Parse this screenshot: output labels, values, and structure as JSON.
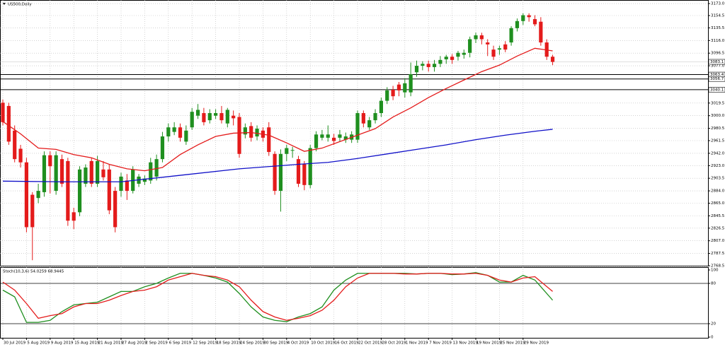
{
  "chart_data": {
    "type": "candlestick",
    "title": "US500,Daily",
    "up_color": "#1f8f1f",
    "down_color": "#e41b1b",
    "grid": true,
    "ylim": [
      2768.5,
      3178.5
    ],
    "yticks": [
      {
        "value": 3173.0,
        "label": "3173.0"
      },
      {
        "value": 3154.5,
        "label": "3154.5"
      },
      {
        "value": 3135.5,
        "label": "3135.5"
      },
      {
        "value": 3116.0,
        "label": "3116.0"
      },
      {
        "value": 3096.5,
        "label": "3096.5"
      },
      {
        "value": 3077.0,
        "label": "3077.0"
      },
      {
        "value": 3019.5,
        "label": "3019.5"
      },
      {
        "value": 3000.0,
        "label": "3000.0"
      },
      {
        "value": 2980.5,
        "label": "2980.5"
      },
      {
        "value": 2961.5,
        "label": "2961.5"
      },
      {
        "value": 2942.0,
        "label": "2942.0"
      },
      {
        "value": 2923.0,
        "label": "2923.0"
      },
      {
        "value": 2903.5,
        "label": "2903.5"
      },
      {
        "value": 2884.0,
        "label": "2884.0"
      },
      {
        "value": 2865.0,
        "label": "2865.0"
      },
      {
        "value": 2845.5,
        "label": "2845.5"
      },
      {
        "value": 2826.5,
        "label": "2826.5"
      },
      {
        "value": 2807.0,
        "label": "2807.0"
      },
      {
        "value": 2787.5,
        "label": "2787.5"
      },
      {
        "value": 2768.5,
        "label": "2768.5"
      }
    ],
    "levels": [
      {
        "value": 3063.4,
        "label": "3063.4"
      },
      {
        "value": 3056.7,
        "label": "3056.7"
      },
      {
        "value": 3040.1,
        "label": "3040.1"
      }
    ],
    "price_label": {
      "value": 3083.1,
      "label": "3083.1"
    },
    "categories": [
      "30 Jul 2019",
      null,
      null,
      null,
      "5 Aug 2019",
      null,
      null,
      null,
      "9 Aug 2019",
      null,
      null,
      null,
      "15 Aug 2019",
      null,
      null,
      null,
      "21 Aug 2019",
      null,
      null,
      null,
      "27 Aug 2019",
      null,
      null,
      null,
      "2 Sep 2019",
      null,
      null,
      null,
      "6 Sep 2019",
      null,
      null,
      null,
      "12 Sep 2019",
      null,
      null,
      null,
      "18 Sep 2019",
      null,
      null,
      null,
      "24 Sep 2019",
      null,
      null,
      null,
      "30 Sep 2019",
      null,
      null,
      null,
      "4 Oct 2019",
      null,
      null,
      null,
      "10 Oct 2019",
      null,
      null,
      null,
      "16 Oct 2019",
      null,
      null,
      null,
      "22 Oct 2019",
      null,
      null,
      null,
      "28 Oct 2019",
      null,
      null,
      null,
      "1 Nov 2019",
      null,
      null,
      null,
      "7 Nov 2019",
      null,
      null,
      null,
      "13 Nov 2019",
      null,
      null,
      null,
      "19 Nov 2019",
      null,
      null,
      null,
      "25 Nov 2019",
      null,
      null,
      null,
      "29 Nov 2019",
      null,
      null,
      null,
      null,
      null
    ],
    "candles": [
      [
        3020,
        3025,
        2985,
        2990
      ],
      [
        3015,
        3020,
        2955,
        2960
      ],
      [
        2977,
        2985,
        2928,
        2933
      ],
      [
        2949,
        2955,
        2920,
        2928
      ],
      [
        2928,
        2935,
        2820,
        2828
      ],
      [
        2878,
        2882,
        2777,
        2828
      ],
      [
        2873,
        2895,
        2865,
        2884
      ],
      [
        2882,
        2945,
        2875,
        2939
      ],
      [
        2939,
        2945,
        2880,
        2922
      ],
      [
        2884,
        2945,
        2878,
        2939
      ],
      [
        2933,
        2940,
        2890,
        2895
      ],
      [
        2930,
        2935,
        2830,
        2838
      ],
      [
        2851,
        2858,
        2825,
        2838
      ],
      [
        2851,
        2922,
        2845,
        2917
      ],
      [
        2895,
        2925,
        2890,
        2920
      ],
      [
        2930,
        2935,
        2890,
        2895
      ],
      [
        2895,
        2938,
        2890,
        2930
      ],
      [
        2917,
        2930,
        2900,
        2905
      ],
      [
        2917,
        2925,
        2848,
        2854
      ],
      [
        2884,
        2890,
        2820,
        2828
      ],
      [
        2884,
        2912,
        2875,
        2906
      ],
      [
        2900,
        2910,
        2870,
        2884
      ],
      [
        2884,
        2922,
        2880,
        2917
      ],
      [
        2895,
        2910,
        2890,
        2906
      ],
      [
        2898,
        2908,
        2893,
        2903
      ],
      [
        2900,
        2935,
        2895,
        2928
      ],
      [
        2906,
        2940,
        2900,
        2933
      ],
      [
        2933,
        2975,
        2928,
        2968
      ],
      [
        2968,
        2988,
        2960,
        2982
      ],
      [
        2975,
        2990,
        2970,
        2982
      ],
      [
        2982,
        2988,
        2960,
        2966
      ],
      [
        2960,
        2985,
        2955,
        2977
      ],
      [
        2982,
        3012,
        2978,
        3006
      ],
      [
        3000,
        3018,
        2995,
        3009
      ],
      [
        3004,
        3012,
        2985,
        2990
      ],
      [
        2993,
        3010,
        2988,
        3004
      ],
      [
        3000,
        3010,
        2995,
        3004
      ],
      [
        3004,
        3015,
        2988,
        2993
      ],
      [
        2988,
        3012,
        2982,
        3009
      ],
      [
        3000,
        3008,
        2985,
        2996
      ],
      [
        2998,
        3004,
        2935,
        2941
      ],
      [
        2971,
        2988,
        2965,
        2982
      ],
      [
        2984,
        2990,
        2960,
        2966
      ],
      [
        2968,
        2985,
        2962,
        2980
      ],
      [
        2977,
        2982,
        2960,
        2966
      ],
      [
        2982,
        2990,
        2938,
        2944
      ],
      [
        2941,
        2945,
        2878,
        2884
      ],
      [
        2884,
        2948,
        2852,
        2941
      ],
      [
        2941,
        2955,
        2930,
        2950
      ],
      [
        2946,
        2952,
        2935,
        2947
      ],
      [
        2933,
        2938,
        2890,
        2895
      ],
      [
        2925,
        2930,
        2885,
        2893
      ],
      [
        2893,
        2955,
        2888,
        2950
      ],
      [
        2950,
        2976,
        2945,
        2971
      ],
      [
        2966,
        2978,
        2962,
        2971
      ],
      [
        2966,
        2985,
        2960,
        2971
      ],
      [
        2966,
        2972,
        2955,
        2961
      ],
      [
        2966,
        2978,
        2960,
        2971
      ],
      [
        2963,
        2974,
        2958,
        2968
      ],
      [
        2963,
        2976,
        2958,
        2971
      ],
      [
        2963,
        3008,
        2958,
        3004
      ],
      [
        3004,
        3008,
        2982,
        2988
      ],
      [
        2982,
        2998,
        2978,
        2993
      ],
      [
        2993,
        3010,
        2988,
        3004
      ],
      [
        3004,
        3028,
        2998,
        3023
      ],
      [
        3023,
        3044,
        3018,
        3039
      ],
      [
        3040,
        3046,
        3024,
        3030
      ],
      [
        3048,
        3052,
        3030,
        3039
      ],
      [
        3036,
        3058,
        3028,
        3050
      ],
      [
        3036,
        3082,
        3030,
        3064
      ],
      [
        3067,
        3085,
        3060,
        3077
      ],
      [
        3077,
        3084,
        3070,
        3080
      ],
      [
        3080,
        3085,
        3068,
        3075
      ],
      [
        3075,
        3086,
        3068,
        3080
      ],
      [
        3080,
        3092,
        3075,
        3086
      ],
      [
        3087,
        3094,
        3080,
        3091
      ],
      [
        3091,
        3095,
        3080,
        3086
      ],
      [
        3091,
        3100,
        3085,
        3097
      ],
      [
        3094,
        3102,
        3088,
        3097
      ],
      [
        3097,
        3122,
        3090,
        3118
      ],
      [
        3118,
        3128,
        3112,
        3124
      ],
      [
        3124,
        3128,
        3110,
        3118
      ],
      [
        3113,
        3118,
        3092,
        3110
      ],
      [
        3102,
        3108,
        3086,
        3091
      ],
      [
        3102,
        3108,
        3094,
        3104
      ],
      [
        3110,
        3115,
        3098,
        3102
      ],
      [
        3113,
        3138,
        3108,
        3135
      ],
      [
        3135,
        3150,
        3130,
        3146
      ],
      [
        3146,
        3158,
        3140,
        3155
      ],
      [
        3155,
        3158,
        3145,
        3152
      ],
      [
        3149,
        3155,
        3138,
        3141
      ],
      [
        3145,
        3152,
        3108,
        3113
      ],
      [
        3113,
        3118,
        3086,
        3091
      ],
      [
        3091,
        3094,
        3078,
        3083
      ]
    ],
    "lines": [
      {
        "color": "#e41b1b",
        "x": [
          0,
          3,
          6,
          9,
          12,
          15,
          18,
          21,
          24,
          27,
          30,
          33,
          36,
          39,
          42,
          45,
          48,
          51,
          54,
          57,
          60,
          63,
          66,
          69,
          72,
          75,
          78,
          81,
          84,
          87,
          90,
          93
        ],
        "values": [
          2991,
          2972,
          2950,
          2948,
          2940,
          2935,
          2925,
          2918,
          2915,
          2920,
          2940,
          2955,
          2968,
          2973,
          2974,
          2970,
          2958,
          2945,
          2950,
          2960,
          2970,
          2980,
          2998,
          3012,
          3028,
          3042,
          3055,
          3068,
          3078,
          3092,
          3104,
          3100
        ]
      },
      {
        "color": "#1010c8",
        "x": [
          0,
          10,
          20,
          30,
          40,
          50,
          55,
          60,
          65,
          70,
          75,
          80,
          85,
          90,
          93
        ],
        "values": [
          2899,
          2898,
          2898,
          2908,
          2918,
          2925,
          2928,
          2934,
          2941,
          2948,
          2955,
          2963,
          2970,
          2976,
          2979
        ]
      }
    ],
    "stoch": {
      "label": "Stoch(10,3,6) 54.0259 68.9445",
      "ylim": [
        0,
        100
      ],
      "yticks": [
        100,
        80,
        20,
        0
      ],
      "levels": [
        80,
        20
      ],
      "x": [
        0,
        2,
        4,
        6,
        8,
        10,
        12,
        14,
        16,
        18,
        20,
        22,
        24,
        26,
        28,
        30,
        32,
        34,
        36,
        38,
        40,
        42,
        44,
        46,
        48,
        50,
        52,
        54,
        56,
        58,
        60,
        62,
        64,
        66,
        68,
        70,
        72,
        74,
        76,
        78,
        80,
        82,
        84,
        86,
        88,
        90,
        93
      ],
      "series": [
        {
          "color": "#1f8f1f",
          "values": [
            70,
            60,
            22,
            22,
            25,
            38,
            48,
            50,
            52,
            60,
            68,
            68,
            75,
            80,
            88,
            95,
            95,
            92,
            88,
            82,
            65,
            45,
            30,
            25,
            23,
            30,
            35,
            45,
            70,
            85,
            95,
            95,
            95,
            95,
            95,
            94,
            95,
            95,
            93,
            94,
            96,
            92,
            82,
            82,
            92,
            85,
            55
          ]
        },
        {
          "color": "#e41b1b",
          "values": [
            82,
            70,
            50,
            28,
            32,
            35,
            45,
            50,
            50,
            55,
            62,
            68,
            70,
            75,
            85,
            90,
            95,
            92,
            90,
            85,
            75,
            55,
            38,
            30,
            25,
            28,
            32,
            40,
            55,
            75,
            88,
            95,
            95,
            95,
            94,
            94,
            95,
            95,
            94,
            94,
            95,
            92,
            85,
            82,
            88,
            90,
            68
          ]
        }
      ]
    }
  }
}
